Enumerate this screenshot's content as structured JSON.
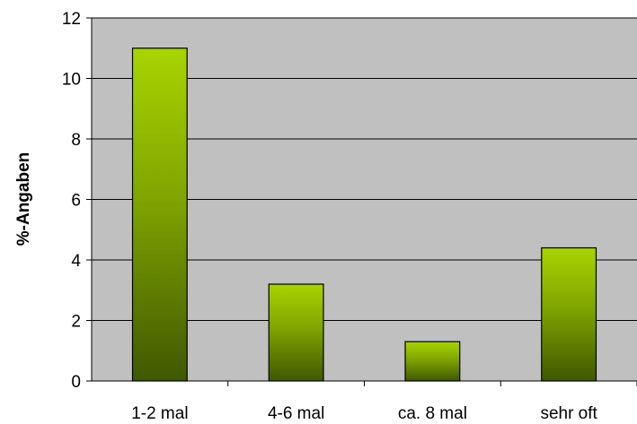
{
  "chart_data": {
    "type": "bar",
    "title": "",
    "xlabel": "",
    "ylabel": "%-Angaben",
    "categories": [
      "1-2 mal",
      "4-6 mal",
      "ca. 8 mal",
      "sehr oft"
    ],
    "values": [
      11,
      3.2,
      1.3,
      4.4
    ],
    "ylim": [
      0,
      12
    ],
    "yticks": [
      "0",
      "2",
      "4",
      "6",
      "8",
      "10",
      "12"
    ],
    "grid": true,
    "legend": "none",
    "colors": {
      "plot_background": "#c0c0c0",
      "gridline": "#000000",
      "bar_top": "#a8d400",
      "bar_bottom": "#3f5800",
      "bar_outline": "#000000"
    }
  }
}
